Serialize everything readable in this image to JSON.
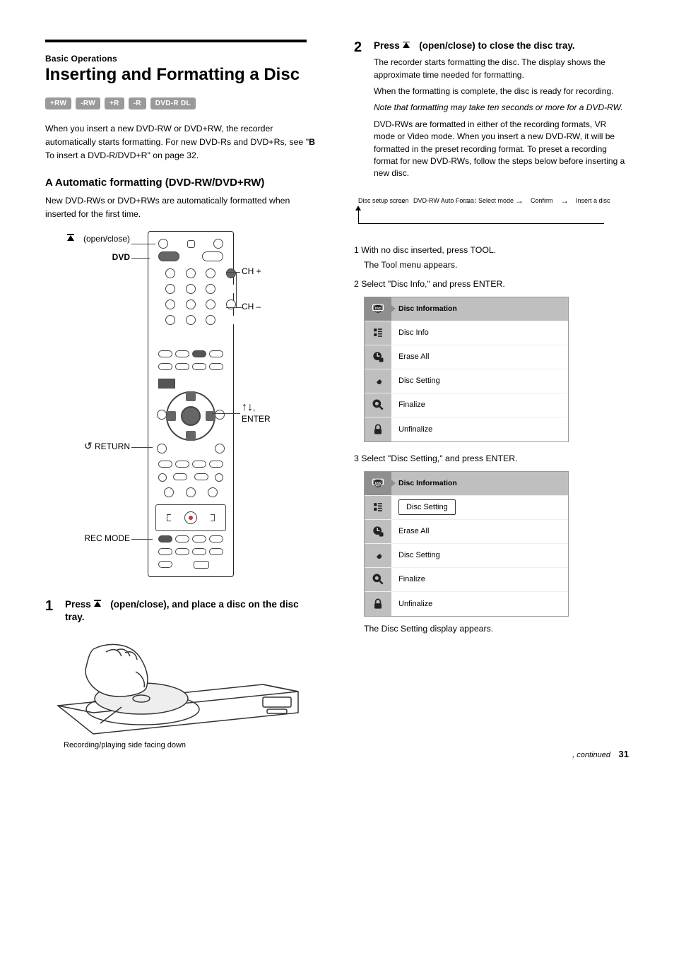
{
  "page_number": "31",
  "continued_text": ", continued",
  "left": {
    "section_supertitle": "Basic Operations",
    "section_title": "Inserting and Formatting a Disc",
    "badges": [
      "+RW",
      "-RW",
      "+R",
      "-R",
      "DVD-R DL"
    ],
    "intro_html": "When you insert a new DVD-RW or DVD+RW, the recorder automatically starts formatting. For new DVD-Rs and DVD+Rs, see \"<b>B</b> To insert a DVD-R/DVD+R\" on page 32.",
    "formatting_heading": "A Automatic formatting (DVD-RW/DVD+RW)",
    "formatting_body": "New DVD-RWs or DVD+RWs are automatically formatted when inserted for the first time.",
    "remote_labels": {
      "open_close": "(open/close)",
      "dvd_button": "DVD",
      "chup": "CH +",
      "chdn": "CH –",
      "arrows_enter": ", \nENTER",
      "return": "RETURN",
      "recmode": "REC MODE",
      "z_glyph": "Z",
      "eject_sym": "▲"
    },
    "steps": {
      "s1": {
        "num": "1",
        "text_html": "Press <span class=\"eject-tri\"></span><span class=\"eject-bar\"></span> (open/close), and place a disc on the disc tray."
      },
      "tray_label": "Recording/playing side facing down"
    }
  },
  "right": {
    "step2": {
      "num": "2",
      "text_html": "Press <span class=\"eject-tri\"></span><span class=\"eject-bar\"></span> (open/close) to close the disc tray.",
      "sub1": "The recorder starts formatting the disc. The display shows the approximate time needed for formatting.",
      "sub2": "When the formatting is complete, the disc is ready for recording.",
      "sub3_html": "<span class=\"note\">Note that formatting may take ten seconds or more for a DVD-RW.</span>",
      "sub4": "DVD-RWs are formatted in either of the recording formats, VR mode or Video mode. When you insert a new DVD-RW, it will be formatted in the preset recording format. To preset a recording format for new DVD-RWs, follow the steps below before inserting a new disc."
    },
    "flow": {
      "nodes": [
        "Disc setup screen",
        "DVD-RW Auto Format",
        "Select mode",
        "Confirm",
        "Insert a disc"
      ],
      "font_size": 9
    },
    "block1": {
      "pre": "1 With no disc inserted, press TOOL.",
      "post": "The Tool menu appears.",
      "sub_step": "2 Select \"Disc Info,\" and press ENTER.",
      "menu_head": "Disc Information",
      "menu_items": [
        "Disc Info",
        "Erase All",
        "Disc Setting",
        "Finalize",
        "Unfinalize"
      ],
      "selected_label": "Disc Setting"
    },
    "block2": {
      "sub_step": "3 Select \"Disc Setting,\" and press ENTER.",
      "menu_head": "Disc Information",
      "menu_items": [
        "Disc Info",
        "Erase All",
        "Disc Setting",
        "Finalize",
        "Unfinalize"
      ],
      "selected_label": "Disc Setting",
      "note": "The Disc Setting display appears."
    }
  },
  "colors": {
    "badge_bg": "#9a9a9a",
    "menu_gray": "#bfbfbf",
    "menu_active": "#8f8f8f"
  }
}
